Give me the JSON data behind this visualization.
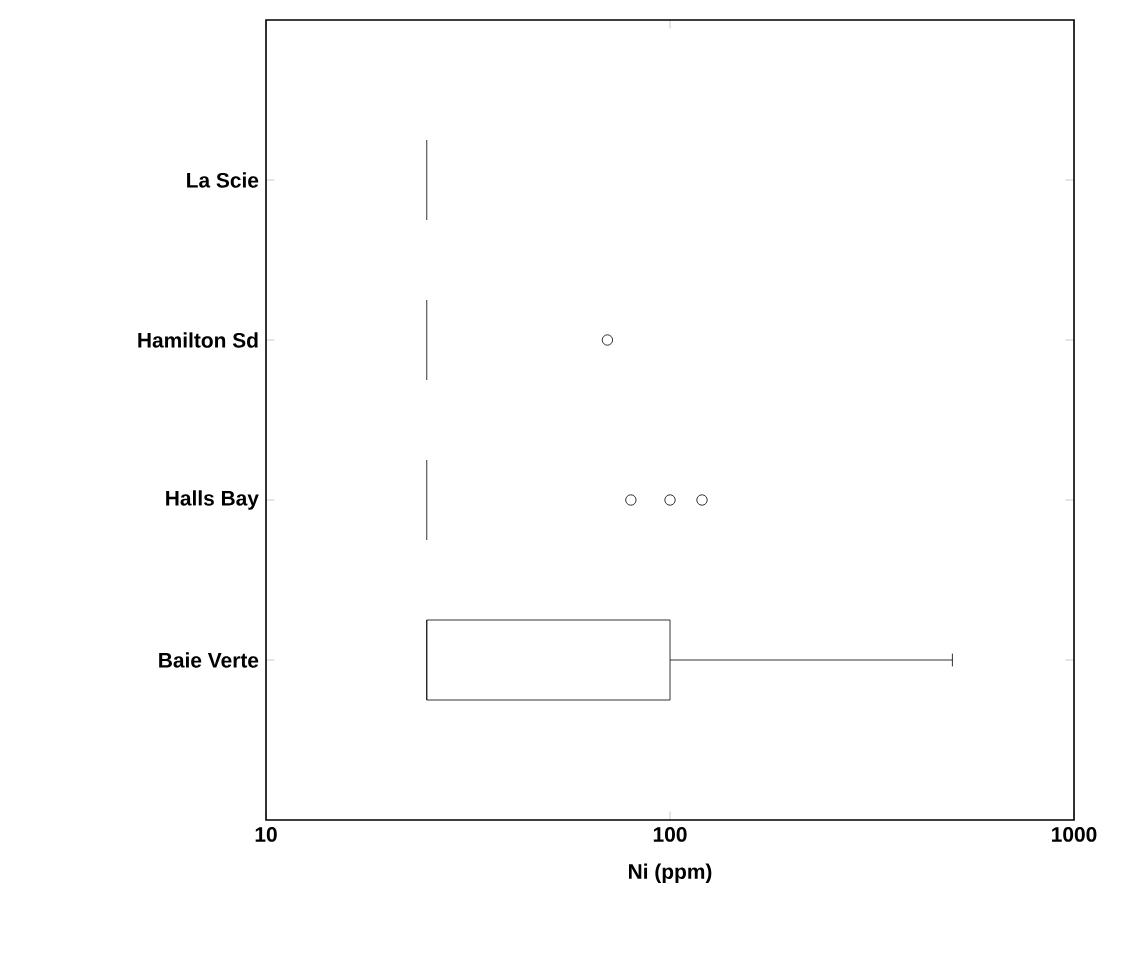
{
  "chart_data": {
    "type": "box",
    "orientation": "horizontal",
    "categories": [
      "La Scie",
      "Hamilton Sd",
      "Halls Bay",
      "Baie Verte"
    ],
    "xlabel": "Ni (ppm)",
    "log": "x",
    "xlim": [
      10,
      1000
    ],
    "xticks": [
      10,
      100,
      1000
    ],
    "marker": "circle",
    "boxes": [
      {
        "low": 25,
        "q1": 25,
        "median": 25,
        "q3": 25,
        "high": 25
      },
      {
        "low": 25,
        "q1": 25,
        "median": 25,
        "q3": 25,
        "high": 25,
        "outliers": [
          70
        ]
      },
      {
        "low": 25,
        "q1": 25,
        "median": 25,
        "q3": 25,
        "high": 25,
        "outliers": [
          80,
          100,
          120
        ]
      },
      {
        "low": 25,
        "q1": 25,
        "median": 25,
        "q3": 100,
        "high": 500
      }
    ]
  }
}
